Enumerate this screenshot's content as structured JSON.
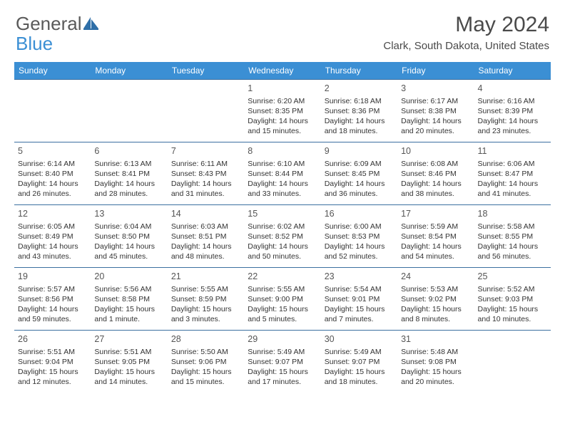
{
  "logo": {
    "text_gray": "General",
    "text_blue": "Blue"
  },
  "title": "May 2024",
  "location": "Clark, South Dakota, United States",
  "colors": {
    "header_bg": "#3b8fd4",
    "header_text": "#ffffff",
    "cell_border": "#3b6fa0",
    "body_text": "#333333",
    "title_text": "#4a4a4a",
    "logo_gray": "#5a5a5a",
    "logo_blue": "#3b8fd4"
  },
  "weekdays": [
    "Sunday",
    "Monday",
    "Tuesday",
    "Wednesday",
    "Thursday",
    "Friday",
    "Saturday"
  ],
  "weeks": [
    [
      null,
      null,
      null,
      {
        "n": "1",
        "sr": "6:20 AM",
        "ss": "8:35 PM",
        "dl": "14 hours and 15 minutes."
      },
      {
        "n": "2",
        "sr": "6:18 AM",
        "ss": "8:36 PM",
        "dl": "14 hours and 18 minutes."
      },
      {
        "n": "3",
        "sr": "6:17 AM",
        "ss": "8:38 PM",
        "dl": "14 hours and 20 minutes."
      },
      {
        "n": "4",
        "sr": "6:16 AM",
        "ss": "8:39 PM",
        "dl": "14 hours and 23 minutes."
      }
    ],
    [
      {
        "n": "5",
        "sr": "6:14 AM",
        "ss": "8:40 PM",
        "dl": "14 hours and 26 minutes."
      },
      {
        "n": "6",
        "sr": "6:13 AM",
        "ss": "8:41 PM",
        "dl": "14 hours and 28 minutes."
      },
      {
        "n": "7",
        "sr": "6:11 AM",
        "ss": "8:43 PM",
        "dl": "14 hours and 31 minutes."
      },
      {
        "n": "8",
        "sr": "6:10 AM",
        "ss": "8:44 PM",
        "dl": "14 hours and 33 minutes."
      },
      {
        "n": "9",
        "sr": "6:09 AM",
        "ss": "8:45 PM",
        "dl": "14 hours and 36 minutes."
      },
      {
        "n": "10",
        "sr": "6:08 AM",
        "ss": "8:46 PM",
        "dl": "14 hours and 38 minutes."
      },
      {
        "n": "11",
        "sr": "6:06 AM",
        "ss": "8:47 PM",
        "dl": "14 hours and 41 minutes."
      }
    ],
    [
      {
        "n": "12",
        "sr": "6:05 AM",
        "ss": "8:49 PM",
        "dl": "14 hours and 43 minutes."
      },
      {
        "n": "13",
        "sr": "6:04 AM",
        "ss": "8:50 PM",
        "dl": "14 hours and 45 minutes."
      },
      {
        "n": "14",
        "sr": "6:03 AM",
        "ss": "8:51 PM",
        "dl": "14 hours and 48 minutes."
      },
      {
        "n": "15",
        "sr": "6:02 AM",
        "ss": "8:52 PM",
        "dl": "14 hours and 50 minutes."
      },
      {
        "n": "16",
        "sr": "6:00 AM",
        "ss": "8:53 PM",
        "dl": "14 hours and 52 minutes."
      },
      {
        "n": "17",
        "sr": "5:59 AM",
        "ss": "8:54 PM",
        "dl": "14 hours and 54 minutes."
      },
      {
        "n": "18",
        "sr": "5:58 AM",
        "ss": "8:55 PM",
        "dl": "14 hours and 56 minutes."
      }
    ],
    [
      {
        "n": "19",
        "sr": "5:57 AM",
        "ss": "8:56 PM",
        "dl": "14 hours and 59 minutes."
      },
      {
        "n": "20",
        "sr": "5:56 AM",
        "ss": "8:58 PM",
        "dl": "15 hours and 1 minute."
      },
      {
        "n": "21",
        "sr": "5:55 AM",
        "ss": "8:59 PM",
        "dl": "15 hours and 3 minutes."
      },
      {
        "n": "22",
        "sr": "5:55 AM",
        "ss": "9:00 PM",
        "dl": "15 hours and 5 minutes."
      },
      {
        "n": "23",
        "sr": "5:54 AM",
        "ss": "9:01 PM",
        "dl": "15 hours and 7 minutes."
      },
      {
        "n": "24",
        "sr": "5:53 AM",
        "ss": "9:02 PM",
        "dl": "15 hours and 8 minutes."
      },
      {
        "n": "25",
        "sr": "5:52 AM",
        "ss": "9:03 PM",
        "dl": "15 hours and 10 minutes."
      }
    ],
    [
      {
        "n": "26",
        "sr": "5:51 AM",
        "ss": "9:04 PM",
        "dl": "15 hours and 12 minutes."
      },
      {
        "n": "27",
        "sr": "5:51 AM",
        "ss": "9:05 PM",
        "dl": "15 hours and 14 minutes."
      },
      {
        "n": "28",
        "sr": "5:50 AM",
        "ss": "9:06 PM",
        "dl": "15 hours and 15 minutes."
      },
      {
        "n": "29",
        "sr": "5:49 AM",
        "ss": "9:07 PM",
        "dl": "15 hours and 17 minutes."
      },
      {
        "n": "30",
        "sr": "5:49 AM",
        "ss": "9:07 PM",
        "dl": "15 hours and 18 minutes."
      },
      {
        "n": "31",
        "sr": "5:48 AM",
        "ss": "9:08 PM",
        "dl": "15 hours and 20 minutes."
      },
      null
    ]
  ],
  "labels": {
    "sunrise": "Sunrise: ",
    "sunset": "Sunset: ",
    "daylight": "Daylight: "
  }
}
